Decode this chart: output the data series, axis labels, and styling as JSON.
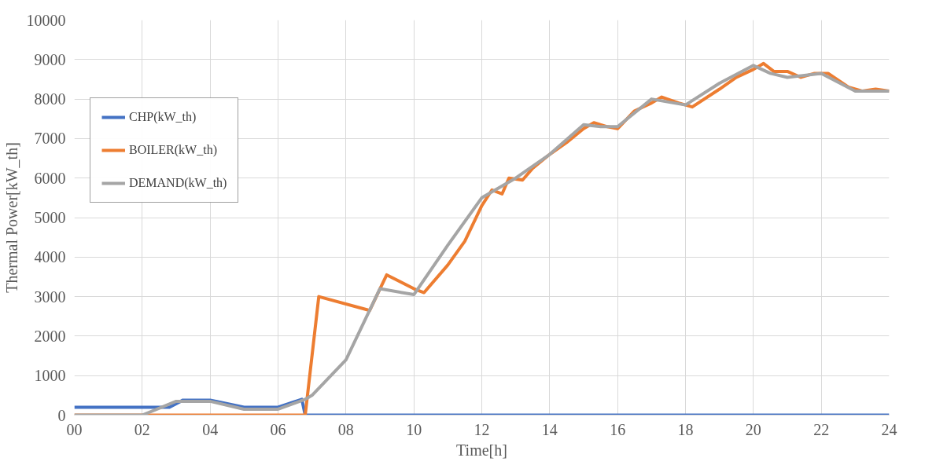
{
  "chart_data": {
    "type": "line",
    "xlabel": "Time[h]",
    "ylabel": "Thermal Power[kW_th]",
    "xlim": [
      0,
      24
    ],
    "ylim": [
      0,
      10000
    ],
    "xticks": [
      {
        "value": 0,
        "label": "00"
      },
      {
        "value": 2,
        "label": "02"
      },
      {
        "value": 4,
        "label": "04"
      },
      {
        "value": 6,
        "label": "06"
      },
      {
        "value": 8,
        "label": "08"
      },
      10,
      12,
      14,
      16,
      18,
      20,
      22,
      24
    ],
    "yticks": [
      0,
      1000,
      2000,
      3000,
      4000,
      5000,
      6000,
      7000,
      8000,
      9000,
      10000
    ],
    "grid": true,
    "legend": "top left",
    "marker": "none",
    "line_style": "solid",
    "series": [
      {
        "name": "CHP(kW_th)",
        "color": "#4472c4",
        "x": [
          0,
          2.8,
          3.2,
          4,
          5,
          6,
          6.7,
          6.8,
          24
        ],
        "values": [
          200,
          200,
          380,
          380,
          200,
          200,
          400,
          0,
          0
        ]
      },
      {
        "name": "BOILER(kW_th)",
        "color": "#ed7d31",
        "x": [
          0,
          6.8,
          7.2,
          8.7,
          9.2,
          10,
          10.3,
          11,
          11.5,
          12,
          12.3,
          12.6,
          12.8,
          13.2,
          13.5,
          14,
          14.5,
          15,
          15.3,
          15.7,
          16,
          16.5,
          17,
          17.3,
          17.8,
          18.2,
          19,
          19.5,
          20,
          20.3,
          20.6,
          21,
          21.4,
          21.8,
          22.2,
          22.8,
          23.2,
          23.6,
          24
        ],
        "values": [
          0,
          0,
          3000,
          2650,
          3550,
          3200,
          3100,
          3800,
          4400,
          5300,
          5700,
          5600,
          6000,
          5950,
          6250,
          6600,
          6900,
          7250,
          7400,
          7300,
          7250,
          7700,
          7900,
          8050,
          7900,
          7800,
          8250,
          8550,
          8750,
          8900,
          8700,
          8700,
          8550,
          8650,
          8650,
          8300,
          8200,
          8250,
          8200
        ]
      },
      {
        "name": "DEMAND(kW_th)",
        "color": "#a5a5a5",
        "x": [
          0,
          2,
          3,
          4,
          5,
          6,
          6.8,
          7,
          8,
          9,
          10,
          11,
          12,
          12.5,
          13,
          14,
          15,
          15.5,
          16,
          17,
          18,
          19,
          20,
          20.5,
          21,
          22,
          23,
          24
        ],
        "values": [
          0,
          0,
          350,
          350,
          150,
          150,
          400,
          500,
          1400,
          3200,
          3050,
          4300,
          5500,
          5750,
          6000,
          6600,
          7350,
          7300,
          7300,
          8000,
          7850,
          8400,
          8850,
          8650,
          8550,
          8650,
          8200,
          8200
        ]
      }
    ]
  }
}
